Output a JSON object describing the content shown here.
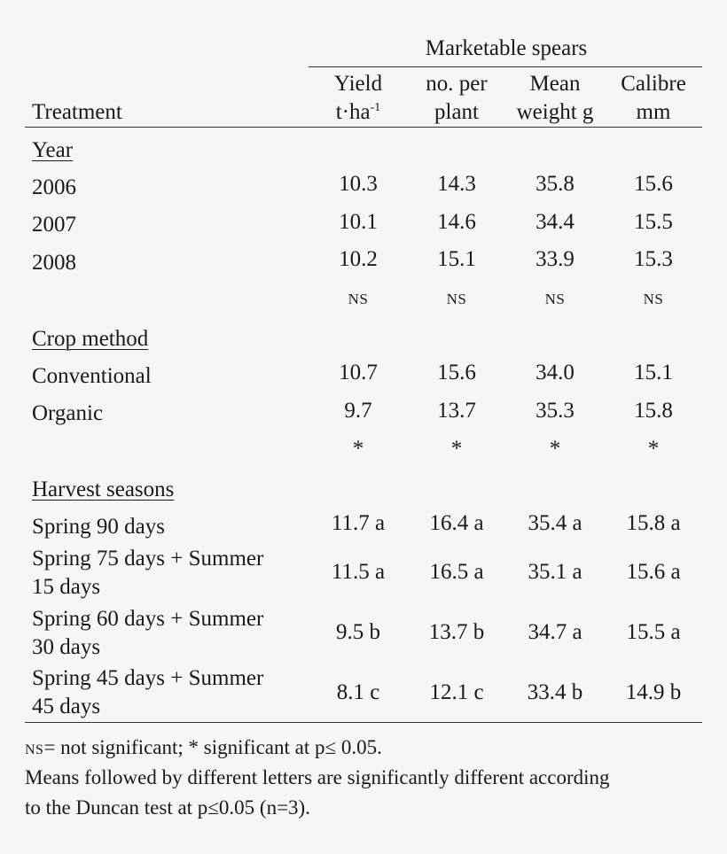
{
  "table": {
    "group_header": "Marketable spears",
    "stub_header": "Treatment",
    "columns": [
      {
        "line1": "Yield",
        "line2_base": "t·ha",
        "line2_sup": "-1"
      },
      {
        "line1": "no. per",
        "line2": "plant"
      },
      {
        "line1": "Mean",
        "line2": "weight g"
      },
      {
        "line1": "Calibre",
        "line2": "mm"
      }
    ],
    "sections": {
      "year": {
        "title": "Year",
        "rows": [
          {
            "label": "2006",
            "values": [
              "10.3",
              "14.3",
              "35.8",
              "15.6"
            ]
          },
          {
            "label": "2007",
            "values": [
              "10.1",
              "14.6",
              "34.4",
              "15.5"
            ]
          },
          {
            "label": "2008",
            "values": [
              "10.2",
              "15.1",
              "33.9",
              "15.3"
            ]
          }
        ],
        "significance": [
          "NS",
          "NS",
          "NS",
          "NS"
        ]
      },
      "crop": {
        "title": "Crop method",
        "rows": [
          {
            "label": "Conventional",
            "values": [
              "10.7",
              "15.6",
              "34.0",
              "15.1"
            ]
          },
          {
            "label": "Organic",
            "values": [
              "9.7",
              "13.7",
              "35.3",
              "15.8"
            ]
          }
        ],
        "significance": [
          "*",
          "*",
          "*",
          "*"
        ]
      },
      "harvest": {
        "title": "Harvest seasons",
        "rows": [
          {
            "label1": "Spring 90 days",
            "label2": "",
            "values": [
              "11.7 a",
              "16.4 a",
              "35.4 a",
              "15.8 a"
            ]
          },
          {
            "label1": "Spring 75 days + Summer",
            "label2": "15 days",
            "values": [
              "11.5 a",
              "16.5 a",
              "35.1 a",
              "15.6 a"
            ]
          },
          {
            "label1": "Spring 60 days + Summer",
            "label2": "30 days",
            "values": [
              "9.5 b",
              "13.7 b",
              "34.7 a",
              "15.5 a"
            ]
          },
          {
            "label1": "Spring 45 days + Summer",
            "label2": "45 days",
            "values": [
              "8.1 c",
              "12.1 c",
              "33.4 b",
              "14.9 b"
            ]
          }
        ]
      }
    },
    "footnotes": {
      "ns_abbr": "NS",
      "line1_rest": "= not significant; * significant at p≤ 0.05.",
      "line2": "Means followed by different letters are significantly different according",
      "line3": "to the Duncan test at p≤0.05 (n=3)."
    }
  }
}
